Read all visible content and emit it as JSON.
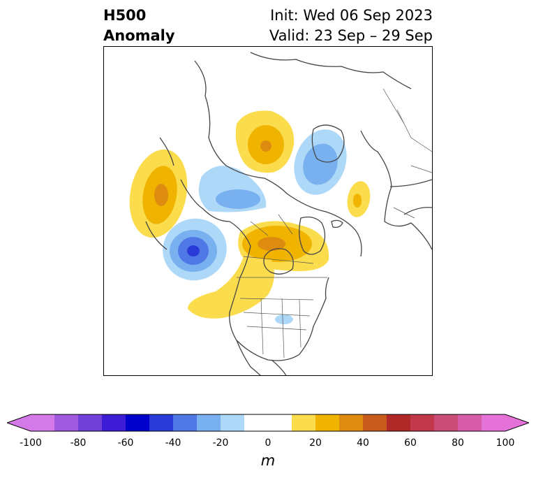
{
  "title": {
    "variable": "H500",
    "kind": "Anomaly",
    "init": "Init: Wed 06 Sep 2023",
    "valid": "Valid: 23 Sep – 29 Sep"
  },
  "map": {
    "projection": "north-polar-stereographic",
    "coastline_color": "#444444",
    "anomalies": [
      {
        "region": "north-pacific-west",
        "sign": "positive",
        "peak_m": 40
      },
      {
        "region": "gulf-of-alaska",
        "sign": "negative",
        "peak_m": -60
      },
      {
        "region": "bering-sea-kamchatka",
        "sign": "negative",
        "peak_m": -30
      },
      {
        "region": "canada-hudson-bay",
        "sign": "positive",
        "peak_m": 30
      },
      {
        "region": "western-us-eastern-pacific",
        "sign": "positive",
        "peak_m": 20
      },
      {
        "region": "scandinavia",
        "sign": "positive",
        "peak_m": 40
      },
      {
        "region": "western-russia",
        "sign": "negative",
        "peak_m": -40
      },
      {
        "region": "east-asia",
        "sign": "positive",
        "peak_m": 20
      },
      {
        "region": "eastern-us",
        "sign": "negative",
        "peak_m": -20
      }
    ]
  },
  "colorbar": {
    "unit": "m",
    "ticks": [
      "-100",
      "-80",
      "-60",
      "-40",
      "-20",
      "0",
      "20",
      "40",
      "60",
      "80",
      "100"
    ],
    "bins": [
      {
        "from": -100,
        "to": -90,
        "color": "#d47ae8"
      },
      {
        "from": -90,
        "to": -80,
        "color": "#a05ae0"
      },
      {
        "from": -80,
        "to": -70,
        "color": "#7040d8"
      },
      {
        "from": -70,
        "to": -60,
        "color": "#3c1cd4"
      },
      {
        "from": -60,
        "to": -50,
        "color": "#0000cc"
      },
      {
        "from": -50,
        "to": -40,
        "color": "#2a3ad8"
      },
      {
        "from": -40,
        "to": -30,
        "color": "#4f78e6"
      },
      {
        "from": -30,
        "to": -20,
        "color": "#78b0f0"
      },
      {
        "from": -20,
        "to": -10,
        "color": "#aed8f8"
      },
      {
        "from": -10,
        "to": 10,
        "color": "#ffffff"
      },
      {
        "from": 10,
        "to": 20,
        "color": "#fbdc4c"
      },
      {
        "from": 20,
        "to": 30,
        "color": "#f0b400"
      },
      {
        "from": 30,
        "to": 40,
        "color": "#de8c10"
      },
      {
        "from": 40,
        "to": 50,
        "color": "#c85a1c"
      },
      {
        "from": 50,
        "to": 60,
        "color": "#b02828"
      },
      {
        "from": 60,
        "to": 70,
        "color": "#c0384a"
      },
      {
        "from": 70,
        "to": 80,
        "color": "#cc4c78"
      },
      {
        "from": 80,
        "to": 90,
        "color": "#d65ca8"
      },
      {
        "from": 90,
        "to": 100,
        "color": "#e472d8"
      }
    ],
    "under_color": "#d47ae8",
    "over_color": "#e472d8"
  }
}
